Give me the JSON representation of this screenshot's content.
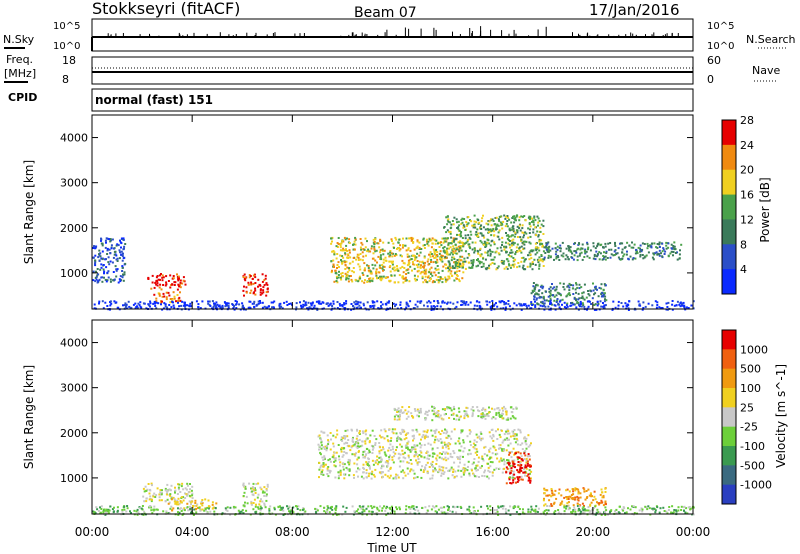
{
  "header": {
    "station": "Stokkseyri (fitACF)",
    "beam": "Beam 07",
    "date": "17/Jan/2016"
  },
  "left_labels": {
    "nsky": "N.Sky",
    "nsky_ticks": [
      "10^5",
      "10^0"
    ],
    "freq_line1": "Freq.",
    "freq_line2": "[MHz]",
    "freq_ticks": [
      "18",
      "8"
    ],
    "cpid": "CPID"
  },
  "right_labels": {
    "nsearch": "N.Search",
    "nsearch_ticks": [
      "10^5",
      "10^0"
    ],
    "nave": "Nave",
    "nave_ticks": [
      "60",
      "0"
    ]
  },
  "cpid_text": "normal (fast) 151",
  "colors": {
    "velocity_ground": "#c8c8c8",
    "power_high": "#e60000",
    "velocity_neg": "#ff7f00"
  },
  "chart_data": [
    {
      "type": "heatmap",
      "title": "",
      "xlabel": "Time UT",
      "ylabel": "Slant Range [km]",
      "xlim": [
        0,
        24
      ],
      "ylim": [
        200,
        4500
      ],
      "x_ticks": [
        "00:00",
        "04:00",
        "08:00",
        "12:00",
        "16:00",
        "20:00",
        "00:00"
      ],
      "y_ticks": [
        1000,
        2000,
        3000,
        4000
      ],
      "colorbar_label": "Power [dB]",
      "colorbar_ticks": [
        "4",
        "8",
        "12",
        "16",
        "20",
        "24",
        "28"
      ],
      "colorbar_colors": [
        "#0a2aff",
        "#2b4fc8",
        "#3a7a5a",
        "#4aa14a",
        "#f0d020",
        "#f08a10",
        "#e60000"
      ],
      "regions": [
        {
          "t0": 2.2,
          "t1": 3.7,
          "r0": 650,
          "r1": 1000,
          "level": 6
        },
        {
          "t0": 2.4,
          "t1": 3.5,
          "r0": 350,
          "r1": 600,
          "level": 5
        },
        {
          "t0": 6.0,
          "t1": 7.0,
          "r0": 500,
          "r1": 1000,
          "level": 6
        },
        {
          "t0": 9.5,
          "t1": 14.8,
          "r0": 800,
          "r1": 1800,
          "level": 4
        },
        {
          "t0": 14.0,
          "t1": 18.0,
          "r0": 1100,
          "r1": 2300,
          "level": 3
        },
        {
          "t0": 18.0,
          "t1": 23.5,
          "r0": 1300,
          "r1": 1700,
          "level": 2
        },
        {
          "t0": 17.5,
          "t1": 20.5,
          "r0": 300,
          "r1": 800,
          "level": 2
        },
        {
          "t0": 0.0,
          "t1": 1.3,
          "r0": 800,
          "r1": 1800,
          "level": 1
        },
        {
          "t0": 0.0,
          "t1": 24.0,
          "r0": 200,
          "r1": 400,
          "level": 0
        }
      ]
    },
    {
      "type": "heatmap",
      "title": "",
      "xlabel": "Time UT",
      "ylabel": "Slant Range [km]",
      "xlim": [
        0,
        24
      ],
      "ylim": [
        200,
        4500
      ],
      "x_ticks": [
        "00:00",
        "04:00",
        "08:00",
        "12:00",
        "16:00",
        "20:00",
        "00:00"
      ],
      "y_ticks": [
        1000,
        2000,
        3000,
        4000
      ],
      "colorbar_label": "Velocity [m s^-1]",
      "colorbar_ticks": [
        "1000",
        "500",
        "100",
        "25",
        "-25",
        "-100",
        "-500",
        "-1000"
      ],
      "colorbar_colors": [
        "#2a3fc0",
        "#3a6a80",
        "#3a9a50",
        "#6ccf3a",
        "#c8c8c8",
        "#f0d020",
        "#f09a10",
        "#f06010",
        "#e60000"
      ],
      "regions": [
        {
          "t0": 2.0,
          "t1": 4.0,
          "r0": 500,
          "r1": 900,
          "level": 4
        },
        {
          "t0": 6.0,
          "t1": 7.0,
          "r0": 400,
          "r1": 900,
          "level": 4
        },
        {
          "t0": 9.0,
          "t1": 17.5,
          "r0": 1000,
          "r1": 2100,
          "level": 4
        },
        {
          "t0": 12.0,
          "t1": 17.0,
          "r0": 2300,
          "r1": 2600,
          "level": 4
        },
        {
          "t0": 16.5,
          "t1": 17.5,
          "r0": 900,
          "r1": 1600,
          "level": 8
        },
        {
          "t0": 18.0,
          "t1": 20.5,
          "r0": 400,
          "r1": 800,
          "level": 6
        },
        {
          "t0": 3.0,
          "t1": 5.0,
          "r0": 300,
          "r1": 550,
          "level": 5
        },
        {
          "t0": 0.0,
          "t1": 24.0,
          "r0": 200,
          "r1": 400,
          "level": 3
        }
      ]
    }
  ]
}
